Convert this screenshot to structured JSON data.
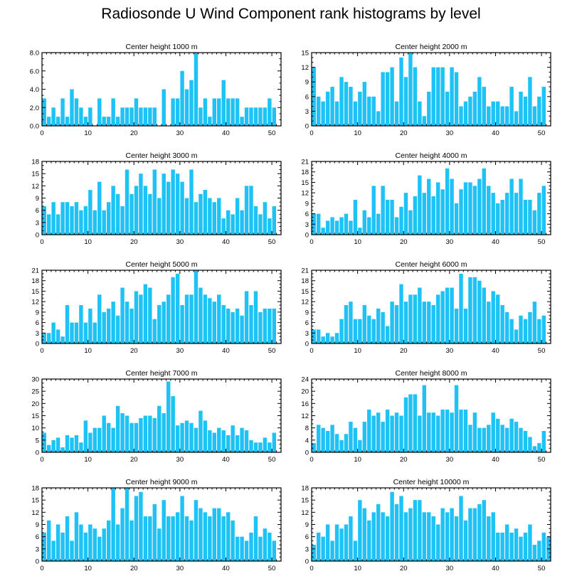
{
  "title": "Radiosonde U Wind Component rank histograms by level",
  "bar_color": "#1ec2f5",
  "chart_data": [
    {
      "type": "bar",
      "title": "Center height 1000 m",
      "x_ticks": [
        0,
        10,
        20,
        30,
        40,
        50
      ],
      "xlim": [
        0,
        52
      ],
      "y_ticks": [
        "0.0",
        "2.0",
        "4.0",
        "6.0",
        "8.0"
      ],
      "ylim": [
        0,
        8
      ],
      "values": [
        3,
        1,
        2,
        1,
        3,
        1,
        4,
        3,
        2,
        1,
        2,
        0,
        3,
        1,
        1,
        3,
        1,
        2,
        2,
        2,
        3,
        2,
        2,
        2,
        2,
        0,
        4,
        0,
        3,
        3,
        6,
        4,
        5,
        8,
        2,
        3,
        1,
        3,
        3,
        5,
        3,
        3,
        3,
        1,
        2,
        2,
        2,
        2,
        2,
        3,
        2
      ]
    },
    {
      "type": "bar",
      "title": "Center height 2000 m",
      "x_ticks": [
        0,
        10,
        20,
        30,
        40,
        50
      ],
      "xlim": [
        0,
        52
      ],
      "y_ticks": [
        "0",
        "3",
        "6",
        "9",
        "12",
        "15"
      ],
      "ylim": [
        0,
        15
      ],
      "values": [
        12,
        6,
        5,
        7,
        8,
        5,
        10,
        9,
        8,
        5,
        7,
        9,
        6,
        6,
        3,
        11,
        11,
        12,
        5,
        14,
        10,
        15,
        12,
        5,
        2,
        7,
        12,
        12,
        12,
        7,
        12,
        11,
        4,
        5,
        6,
        7,
        10,
        8,
        4,
        5,
        5,
        4,
        4,
        8,
        3,
        7,
        6,
        10,
        4,
        6,
        8
      ]
    },
    {
      "type": "bar",
      "title": "Center height 3000 m",
      "x_ticks": [
        0,
        10,
        20,
        30,
        40,
        50
      ],
      "xlim": [
        0,
        52
      ],
      "y_ticks": [
        "0",
        "3",
        "6",
        "9",
        "12",
        "15",
        "18"
      ],
      "ylim": [
        0,
        18
      ],
      "values": [
        7,
        5,
        8,
        5,
        8,
        8,
        7,
        8,
        6,
        7,
        11,
        6,
        13,
        6,
        8,
        12,
        10,
        7,
        16,
        10,
        12,
        15,
        12,
        10,
        16,
        9,
        15,
        13,
        16,
        15,
        13,
        9,
        16,
        8,
        10,
        11,
        9,
        8,
        9,
        4,
        6,
        5,
        9,
        6,
        12,
        12,
        7,
        5,
        8,
        4,
        7
      ]
    },
    {
      "type": "bar",
      "title": "Center height 4000 m",
      "x_ticks": [
        0,
        10,
        20,
        30,
        40,
        50
      ],
      "xlim": [
        0,
        52
      ],
      "y_ticks": [
        "0",
        "3",
        "6",
        "9",
        "12",
        "15",
        "18",
        "21"
      ],
      "ylim": [
        0,
        21
      ],
      "values": [
        6,
        6,
        2,
        4,
        5,
        4,
        5,
        6,
        4,
        10,
        2,
        7,
        5,
        14,
        6,
        14,
        10,
        10,
        5,
        8,
        12,
        7,
        11,
        17,
        12,
        16,
        11,
        15,
        13,
        19,
        16,
        9,
        13,
        15,
        15,
        14,
        16,
        19,
        14,
        12,
        9,
        10,
        12,
        16,
        12,
        16,
        10,
        10,
        7,
        12,
        14
      ]
    },
    {
      "type": "bar",
      "title": "Center height 5000 m",
      "x_ticks": [
        0,
        10,
        20,
        30,
        40,
        50
      ],
      "xlim": [
        0,
        52
      ],
      "y_ticks": [
        "0",
        "3",
        "6",
        "9",
        "12",
        "15",
        "18",
        "21"
      ],
      "ylim": [
        0,
        21
      ],
      "values": [
        3,
        3,
        6,
        4,
        2,
        11,
        6,
        6,
        11,
        6,
        10,
        6,
        14,
        9,
        10,
        12,
        8,
        16,
        12,
        10,
        15,
        14,
        17,
        16,
        7,
        11,
        12,
        14,
        19,
        20,
        11,
        14,
        14,
        21,
        16,
        14,
        13,
        12,
        14,
        11,
        10,
        9,
        10,
        8,
        15,
        11,
        15,
        9,
        10,
        10,
        10
      ]
    },
    {
      "type": "bar",
      "title": "Center height 6000 m",
      "x_ticks": [
        0,
        10,
        20,
        30,
        40,
        50
      ],
      "xlim": [
        0,
        52
      ],
      "y_ticks": [
        "0",
        "3",
        "6",
        "9",
        "12",
        "15",
        "18",
        "21"
      ],
      "ylim": [
        0,
        21
      ],
      "values": [
        4,
        4,
        2,
        3,
        2,
        3,
        7,
        11,
        12,
        7,
        7,
        11,
        8,
        7,
        10,
        9,
        5,
        12,
        11,
        17,
        12,
        14,
        14,
        16,
        12,
        12,
        11,
        14,
        15,
        16,
        16,
        10,
        20,
        10,
        19,
        19,
        18,
        16,
        12,
        15,
        14,
        11,
        9,
        7,
        4,
        8,
        7,
        9,
        12,
        7,
        8
      ]
    },
    {
      "type": "bar",
      "title": "Center height 7000 m",
      "x_ticks": [
        0,
        10,
        20,
        30,
        40,
        50
      ],
      "xlim": [
        0,
        52
      ],
      "y_ticks": [
        "0",
        "5",
        "10",
        "15",
        "20",
        "25",
        "30"
      ],
      "ylim": [
        0,
        30
      ],
      "values": [
        8,
        3,
        5,
        6,
        2,
        7,
        6,
        7,
        4,
        13,
        8,
        10,
        10,
        15,
        12,
        10,
        19,
        16,
        15,
        12,
        12,
        14,
        15,
        15,
        14,
        19,
        16,
        29,
        23,
        11,
        12,
        13,
        12,
        10,
        17,
        13,
        9,
        8,
        10,
        9,
        7,
        11,
        7,
        10,
        9,
        5,
        4,
        4,
        6,
        4,
        8
      ]
    },
    {
      "type": "bar",
      "title": "Center height 8000 m",
      "x_ticks": [
        0,
        10,
        20,
        30,
        40,
        50
      ],
      "xlim": [
        0,
        52
      ],
      "y_ticks": [
        "0",
        "4",
        "8",
        "12",
        "16",
        "20",
        "24"
      ],
      "ylim": [
        0,
        24
      ],
      "values": [
        3,
        9,
        8,
        7,
        9,
        6,
        4,
        6,
        10,
        8,
        4,
        10,
        14,
        12,
        13,
        10,
        14,
        12,
        13,
        12,
        18,
        19,
        19,
        12,
        22,
        13,
        13,
        12,
        14,
        14,
        13,
        22,
        14,
        14,
        9,
        13,
        8,
        8,
        9,
        13,
        11,
        9,
        8,
        11,
        10,
        8,
        7,
        5,
        2,
        3,
        7
      ]
    },
    {
      "type": "bar",
      "title": "Center height 9000 m",
      "x_ticks": [
        0,
        10,
        20,
        30,
        40,
        50
      ],
      "xlim": [
        0,
        52
      ],
      "y_ticks": [
        "0",
        "3",
        "6",
        "9",
        "12",
        "15",
        "18"
      ],
      "ylim": [
        0,
        18
      ],
      "values": [
        7,
        10,
        5,
        9,
        7,
        11,
        5,
        12,
        9,
        7,
        9,
        8,
        6,
        8,
        10,
        18,
        9,
        13,
        18,
        10,
        16,
        17,
        11,
        11,
        14,
        8,
        15,
        11,
        11,
        12,
        16,
        11,
        10,
        15,
        13,
        12,
        11,
        13,
        13,
        11,
        12,
        10,
        6,
        6,
        5,
        7,
        11,
        6,
        8,
        7,
        5
      ]
    },
    {
      "type": "bar",
      "title": "Center height 10000 m",
      "x_ticks": [
        0,
        10,
        20,
        30,
        40,
        50
      ],
      "xlim": [
        0,
        52
      ],
      "y_ticks": [
        "0",
        "3",
        "6",
        "9",
        "12",
        "15",
        "18"
      ],
      "ylim": [
        0,
        18
      ],
      "values": [
        4,
        7,
        6,
        9,
        5,
        9,
        8,
        9,
        11,
        5,
        15,
        13,
        10,
        12,
        14,
        12,
        11,
        17,
        14,
        16,
        12,
        13,
        15,
        15,
        12,
        12,
        11,
        9,
        13,
        12,
        13,
        11,
        16,
        10,
        13,
        13,
        14,
        15,
        11,
        12,
        7,
        7,
        9,
        7,
        8,
        6,
        7,
        9,
        4,
        5,
        7,
        6
      ]
    }
  ]
}
